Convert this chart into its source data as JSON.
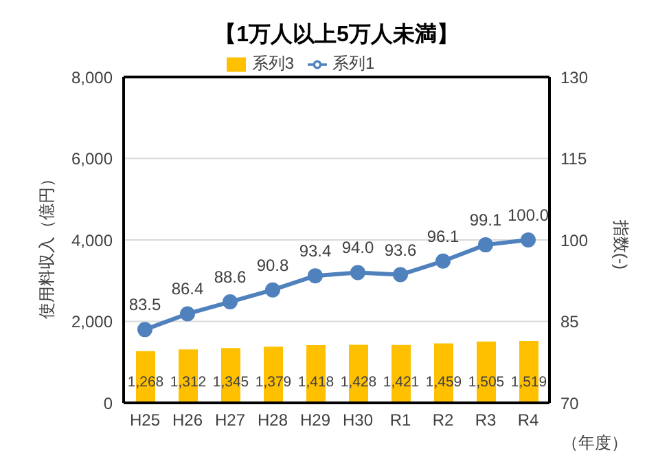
{
  "chart_data": {
    "type": "bar",
    "title": "【1万人以上5万人未満】",
    "ylabel": "使用料収入（億円）",
    "y2label": "指数(-)",
    "annotations": [
      "（年度）"
    ],
    "categories": [
      "H25",
      "H26",
      "H27",
      "H28",
      "H29",
      "H30",
      "R1",
      "R2",
      "R3",
      "R4"
    ],
    "series": [
      {
        "name": "系列3",
        "color": "#ffc000",
        "values": [
          1268,
          1312,
          1345,
          1379,
          1418,
          1428,
          1421,
          1459,
          1505,
          1519
        ],
        "value_labels": [
          "1,268",
          "1,312",
          "1,345",
          "1,379",
          "1,418",
          "1,428",
          "1,421",
          "1,459",
          "1,505",
          "1,519"
        ]
      },
      {
        "name": "系列1",
        "type": "line",
        "axis": "y2",
        "color": "#4f81bd",
        "marker": "circle",
        "values": [
          83.5,
          86.4,
          88.6,
          90.8,
          93.4,
          94.0,
          93.6,
          96.1,
          99.1,
          100.0
        ],
        "value_labels": [
          "83.5",
          "86.4",
          "88.6",
          "90.8",
          "93.4",
          "94.0",
          "93.6",
          "96.1",
          "99.1",
          "100.0"
        ]
      }
    ],
    "ylim": [
      0,
      8000
    ],
    "yticks": [
      {
        "value": 0,
        "label": "0"
      },
      {
        "value": 2000,
        "label": "2,000"
      },
      {
        "value": 4000,
        "label": "4,000"
      },
      {
        "value": 6000,
        "label": "6,000"
      },
      {
        "value": 8000,
        "label": "8,000"
      }
    ],
    "y2lim": [
      70,
      130
    ],
    "y2ticks": [
      70,
      85,
      100,
      115,
      130
    ],
    "grid": "y",
    "legend": "top"
  }
}
